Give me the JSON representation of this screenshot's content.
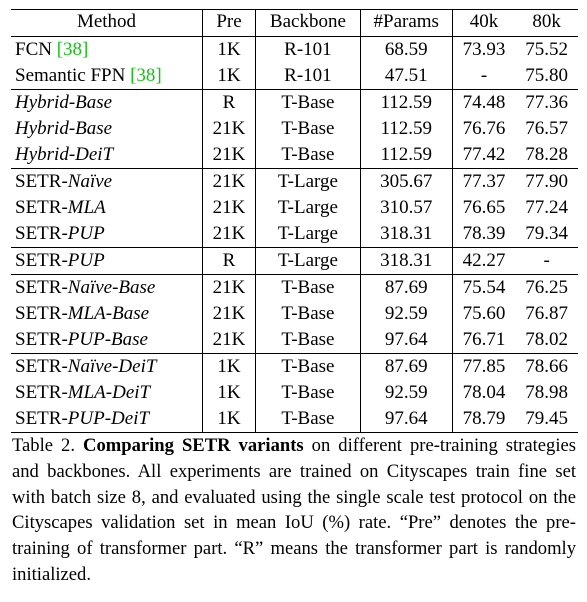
{
  "table": {
    "headers": [
      "Method",
      "Pre",
      "Backbone",
      "#Params",
      "40k",
      "80k"
    ],
    "rows": [
      {
        "method_plain": "FCN ",
        "method_italic": "",
        "cite": "[38]",
        "cite_suffix": "",
        "pre": "1K",
        "backbone": "R-101",
        "params": "68.59",
        "v40k": "73.93",
        "v80k": "75.52"
      },
      {
        "method_plain": "Semantic FPN ",
        "method_italic": "",
        "cite": "[38]",
        "cite_suffix": "",
        "pre": "1K",
        "backbone": "R-101",
        "params": "47.51",
        "v40k": "-",
        "v80k": "75.80"
      },
      {
        "method_plain": "",
        "method_italic": "Hybrid-Base",
        "pre": "R",
        "backbone": "T-Base",
        "params": "112.59",
        "v40k": "74.48",
        "v80k": "77.36"
      },
      {
        "method_plain": "",
        "method_italic": "Hybrid-Base",
        "pre": "21K",
        "backbone": "T-Base",
        "params": "112.59",
        "v40k": "76.76",
        "v80k": "76.57"
      },
      {
        "method_plain": "",
        "method_italic": "Hybrid-DeiT",
        "pre": "21K",
        "backbone": "T-Base",
        "params": "112.59",
        "v40k": "77.42",
        "v80k": "78.28"
      },
      {
        "method_plain": "SETR-",
        "method_italic": "Naïve",
        "pre": "21K",
        "backbone": "T-Large",
        "params": "305.67",
        "v40k": "77.37",
        "v80k": "77.90"
      },
      {
        "method_plain": "SETR-",
        "method_italic": "MLA",
        "pre": "21K",
        "backbone": "T-Large",
        "params": "310.57",
        "v40k": "76.65",
        "v80k": "77.24"
      },
      {
        "method_plain": "SETR-",
        "method_italic": "PUP",
        "pre": "21K",
        "backbone": "T-Large",
        "params": "318.31",
        "v40k": "78.39",
        "v80k": "79.34"
      },
      {
        "method_plain": "SETR-",
        "method_italic": "PUP",
        "pre": "R",
        "backbone": "T-Large",
        "params": "318.31",
        "v40k": "42.27",
        "v80k": "-"
      },
      {
        "method_plain": "SETR-",
        "method_italic": "Naïve-Base",
        "pre": "21K",
        "backbone": "T-Base",
        "params": "87.69",
        "v40k": "75.54",
        "v80k": "76.25"
      },
      {
        "method_plain": "SETR-",
        "method_italic": "MLA-Base",
        "pre": "21K",
        "backbone": "T-Base",
        "params": "92.59",
        "v40k": "75.60",
        "v80k": "76.87"
      },
      {
        "method_plain": "SETR-",
        "method_italic": "PUP-Base",
        "pre": "21K",
        "backbone": "T-Base",
        "params": "97.64",
        "v40k": "76.71",
        "v80k": "78.02"
      },
      {
        "method_plain": "SETR-",
        "method_italic": "Naïve-DeiT",
        "pre": "1K",
        "backbone": "T-Base",
        "params": "87.69",
        "v40k": "77.85",
        "v80k": "78.66"
      },
      {
        "method_plain": "SETR-",
        "method_italic": "MLA-DeiT",
        "pre": "1K",
        "backbone": "T-Base",
        "params": "92.59",
        "v40k": "78.04",
        "v80k": "78.98"
      },
      {
        "method_plain": "SETR-",
        "method_italic": "PUP-DeiT",
        "pre": "1K",
        "backbone": "T-Base",
        "params": "97.64",
        "v40k": "78.79",
        "v80k": "79.45"
      }
    ]
  },
  "caption": {
    "label": "Table 2. ",
    "title": "Comparing SETR variants",
    "body": " on different pre-training strategies and backbones.  All experiments are trained on Cityscapes train fine set with batch size 8, and evaluated using the single scale test protocol on the Cityscapes validation set in mean IoU (%) rate. “Pre” denotes the pre-training of transformer part. “R” means the transformer part is randomly initialized."
  }
}
